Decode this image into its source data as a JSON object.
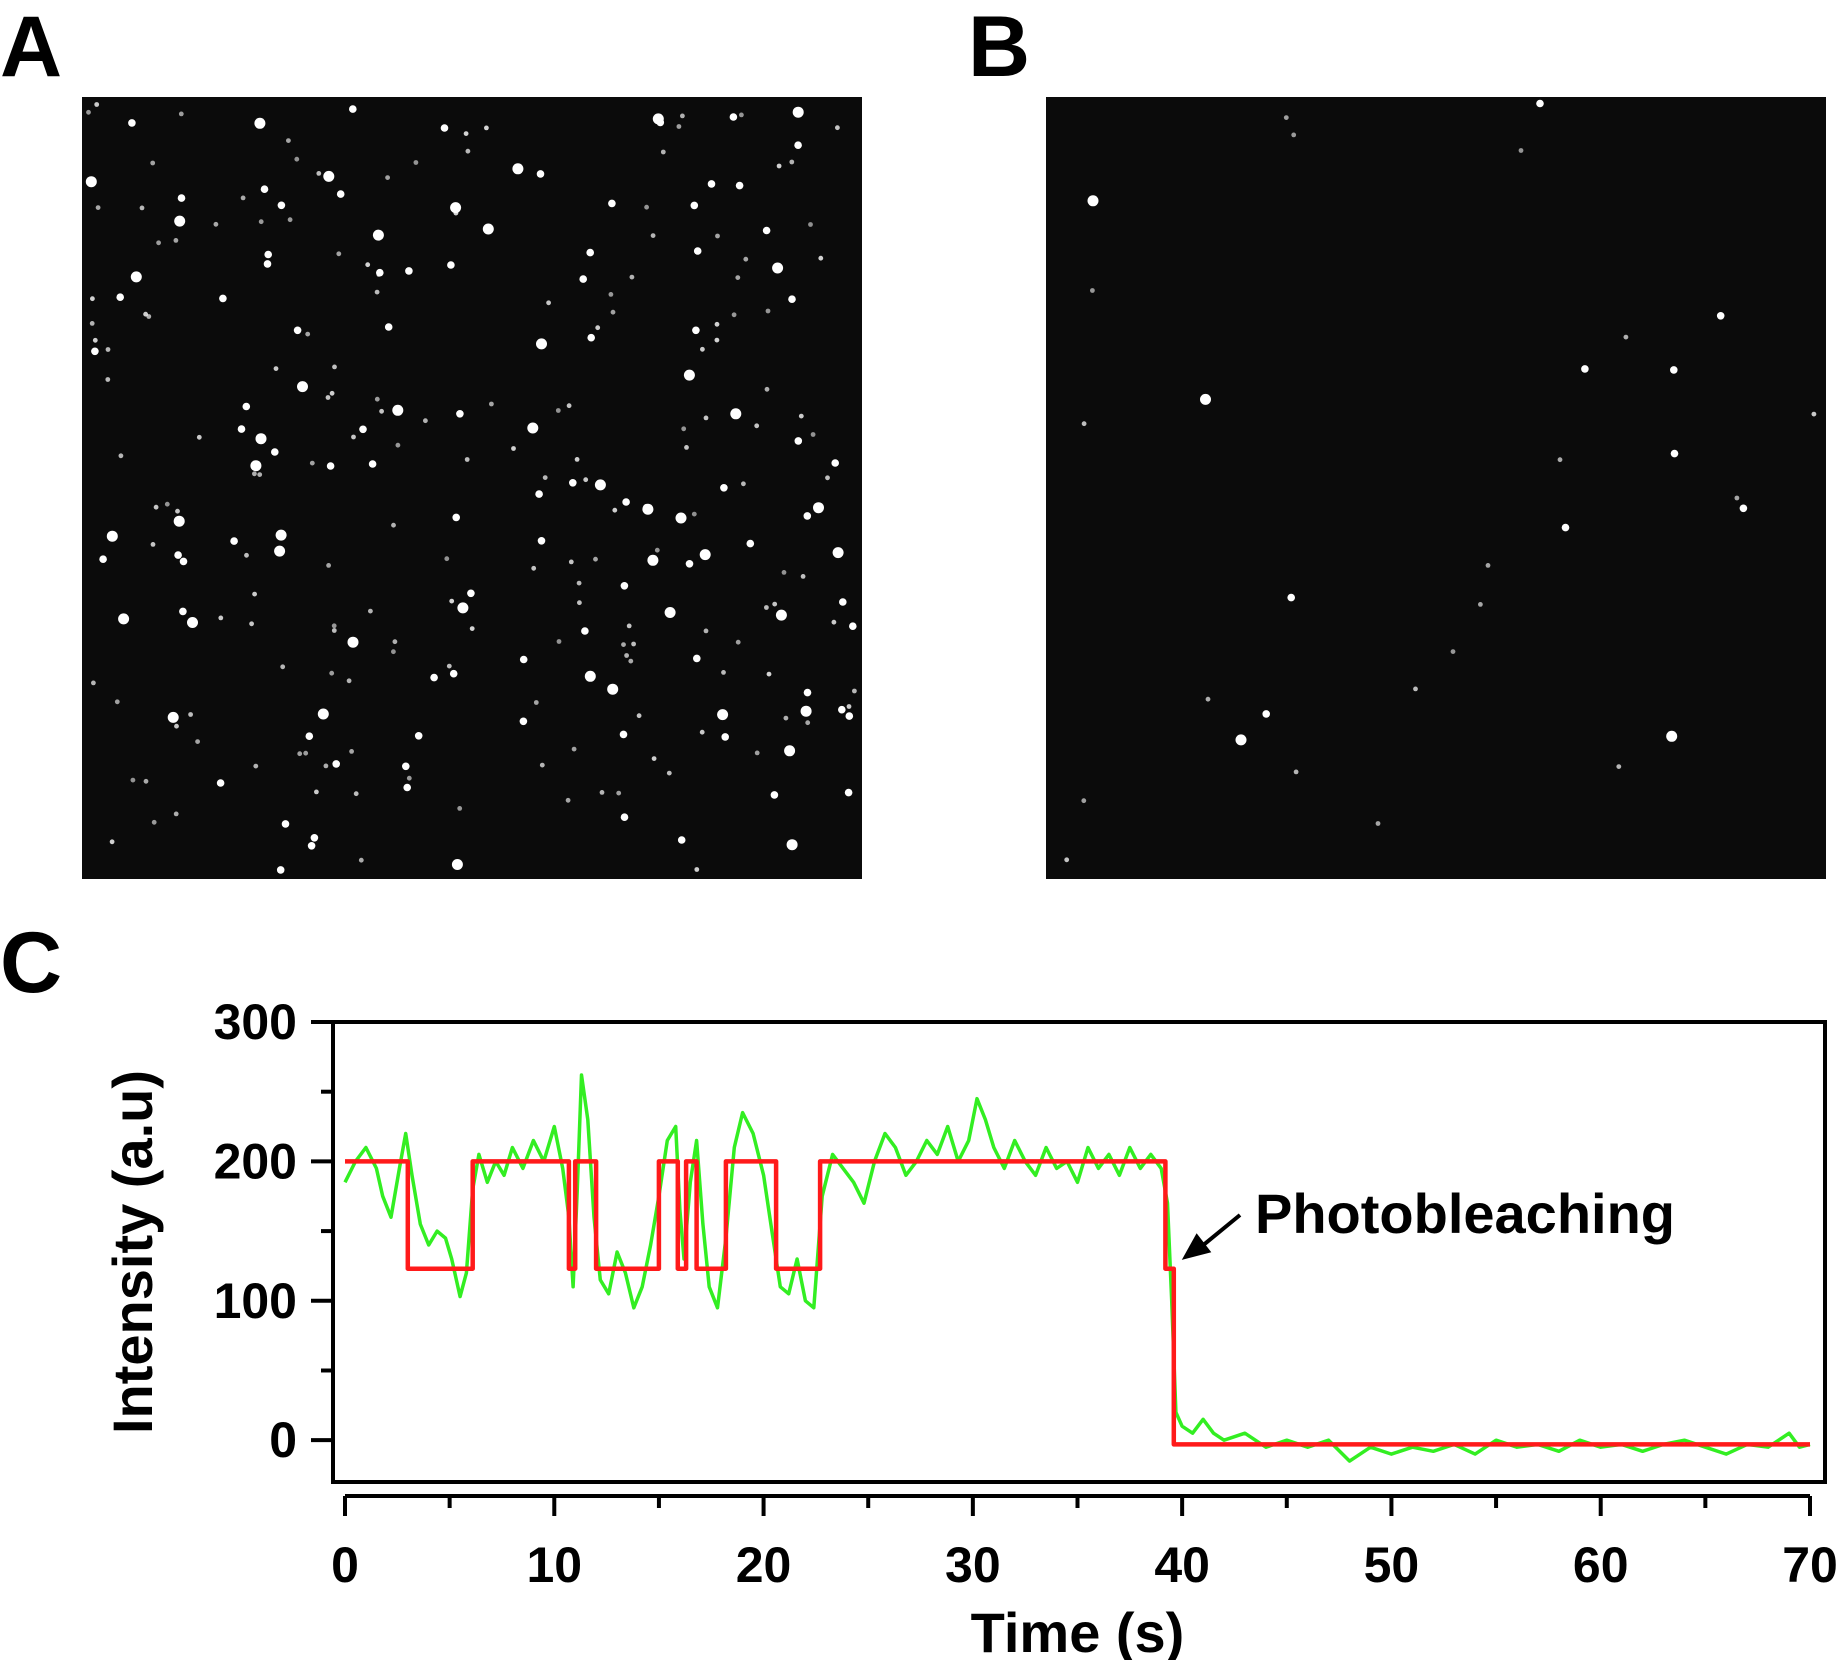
{
  "panels": {
    "a": {
      "label": "A"
    },
    "b": {
      "label": "B"
    },
    "c": {
      "label": "C"
    }
  },
  "colors": {
    "micrograph_background": "#0b0b0b",
    "spot": "#ffffff",
    "raw_trace": "#33ee22",
    "step_fit": "#ff1a1a",
    "axis": "#000000"
  },
  "chart_data": {
    "type": "line",
    "title": "",
    "xlabel": "Time (s)",
    "ylabel": "Intensity (a.u)",
    "xlim": [
      0,
      70
    ],
    "ylim": [
      -30,
      300
    ],
    "x_ticks": [
      0,
      10,
      20,
      30,
      40,
      50,
      60,
      70
    ],
    "y_ticks": [
      0,
      100,
      200,
      300
    ],
    "grid": false,
    "legend": "none",
    "annotations": [
      {
        "text": "Photobleaching",
        "x": 39.6,
        "y": 125
      }
    ],
    "series": [
      {
        "color": "#ff1a1a",
        "kind": "step-fit",
        "points": [
          [
            0,
            200
          ],
          [
            3.0,
            200
          ],
          [
            3.0,
            123
          ],
          [
            6.1,
            123
          ],
          [
            6.1,
            200
          ],
          [
            10.7,
            200
          ],
          [
            10.7,
            123
          ],
          [
            11.0,
            123
          ],
          [
            11.0,
            200
          ],
          [
            12.0,
            200
          ],
          [
            12.0,
            123
          ],
          [
            15.0,
            123
          ],
          [
            15.0,
            200
          ],
          [
            15.9,
            200
          ],
          [
            15.9,
            123
          ],
          [
            16.3,
            123
          ],
          [
            16.3,
            200
          ],
          [
            16.8,
            200
          ],
          [
            16.8,
            123
          ],
          [
            18.2,
            123
          ],
          [
            18.2,
            200
          ],
          [
            20.6,
            200
          ],
          [
            20.6,
            123
          ],
          [
            22.7,
            123
          ],
          [
            22.7,
            200
          ],
          [
            39.2,
            200
          ],
          [
            39.2,
            123
          ],
          [
            39.6,
            123
          ],
          [
            39.6,
            -3
          ],
          [
            70,
            -3
          ]
        ]
      },
      {
        "color": "#33ee22",
        "kind": "raw-trace",
        "points": [
          [
            0,
            185
          ],
          [
            0.5,
            200
          ],
          [
            1.0,
            210
          ],
          [
            1.5,
            195
          ],
          [
            1.8,
            175
          ],
          [
            2.2,
            160
          ],
          [
            2.6,
            195
          ],
          [
            2.9,
            220
          ],
          [
            3.2,
            190
          ],
          [
            3.6,
            155
          ],
          [
            4.0,
            140
          ],
          [
            4.4,
            150
          ],
          [
            4.8,
            145
          ],
          [
            5.1,
            130
          ],
          [
            5.5,
            103
          ],
          [
            5.8,
            120
          ],
          [
            6.1,
            180
          ],
          [
            6.4,
            205
          ],
          [
            6.8,
            185
          ],
          [
            7.2,
            200
          ],
          [
            7.6,
            190
          ],
          [
            8.0,
            210
          ],
          [
            8.5,
            195
          ],
          [
            9.0,
            215
          ],
          [
            9.5,
            200
          ],
          [
            10.0,
            225
          ],
          [
            10.4,
            195
          ],
          [
            10.7,
            160
          ],
          [
            10.9,
            110
          ],
          [
            11.1,
            180
          ],
          [
            11.3,
            262
          ],
          [
            11.6,
            230
          ],
          [
            11.9,
            160
          ],
          [
            12.2,
            115
          ],
          [
            12.6,
            105
          ],
          [
            13.0,
            135
          ],
          [
            13.4,
            120
          ],
          [
            13.8,
            95
          ],
          [
            14.2,
            110
          ],
          [
            14.6,
            140
          ],
          [
            15.0,
            175
          ],
          [
            15.4,
            215
          ],
          [
            15.8,
            225
          ],
          [
            16.0,
            165
          ],
          [
            16.2,
            130
          ],
          [
            16.5,
            185
          ],
          [
            16.8,
            215
          ],
          [
            17.1,
            155
          ],
          [
            17.4,
            110
          ],
          [
            17.8,
            95
          ],
          [
            18.2,
            145
          ],
          [
            18.6,
            210
          ],
          [
            19.0,
            235
          ],
          [
            19.5,
            220
          ],
          [
            20.0,
            190
          ],
          [
            20.4,
            150
          ],
          [
            20.8,
            110
          ],
          [
            21.2,
            105
          ],
          [
            21.6,
            130
          ],
          [
            22.0,
            100
          ],
          [
            22.4,
            95
          ],
          [
            22.8,
            175
          ],
          [
            23.3,
            205
          ],
          [
            23.8,
            195
          ],
          [
            24.3,
            185
          ],
          [
            24.8,
            170
          ],
          [
            25.3,
            200
          ],
          [
            25.8,
            220
          ],
          [
            26.3,
            210
          ],
          [
            26.8,
            190
          ],
          [
            27.3,
            200
          ],
          [
            27.8,
            215
          ],
          [
            28.3,
            205
          ],
          [
            28.8,
            225
          ],
          [
            29.3,
            200
          ],
          [
            29.8,
            215
          ],
          [
            30.2,
            245
          ],
          [
            30.6,
            230
          ],
          [
            31.0,
            210
          ],
          [
            31.5,
            195
          ],
          [
            32.0,
            215
          ],
          [
            32.5,
            200
          ],
          [
            33.0,
            190
          ],
          [
            33.5,
            210
          ],
          [
            34.0,
            195
          ],
          [
            34.5,
            200
          ],
          [
            35.0,
            185
          ],
          [
            35.5,
            210
          ],
          [
            36.0,
            195
          ],
          [
            36.5,
            205
          ],
          [
            37.0,
            190
          ],
          [
            37.5,
            210
          ],
          [
            38.0,
            195
          ],
          [
            38.5,
            205
          ],
          [
            39.0,
            195
          ],
          [
            39.3,
            170
          ],
          [
            39.5,
            100
          ],
          [
            39.7,
            20
          ],
          [
            40.0,
            10
          ],
          [
            40.5,
            5
          ],
          [
            41.0,
            15
          ],
          [
            41.5,
            5
          ],
          [
            42.0,
            0
          ],
          [
            43.0,
            5
          ],
          [
            44.0,
            -5
          ],
          [
            45.0,
            0
          ],
          [
            46.0,
            -5
          ],
          [
            47.0,
            0
          ],
          [
            48.0,
            -15
          ],
          [
            49.0,
            -5
          ],
          [
            50.0,
            -10
          ],
          [
            51.0,
            -5
          ],
          [
            52.0,
            -8
          ],
          [
            53.0,
            -3
          ],
          [
            54.0,
            -10
          ],
          [
            55.0,
            0
          ],
          [
            56.0,
            -5
          ],
          [
            57.0,
            -3
          ],
          [
            58.0,
            -8
          ],
          [
            59.0,
            0
          ],
          [
            60.0,
            -5
          ],
          [
            61.0,
            -3
          ],
          [
            62.0,
            -8
          ],
          [
            63.0,
            -3
          ],
          [
            64.0,
            0
          ],
          [
            65.0,
            -5
          ],
          [
            66.0,
            -10
          ],
          [
            67.0,
            -3
          ],
          [
            68.0,
            -5
          ],
          [
            69.0,
            5
          ],
          [
            69.5,
            -5
          ],
          [
            70,
            -3
          ]
        ]
      }
    ]
  }
}
